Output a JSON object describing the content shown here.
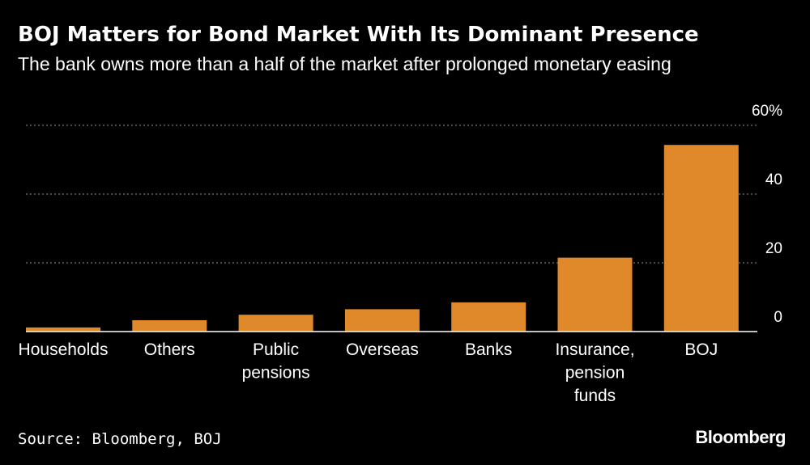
{
  "header": {
    "title": "BOJ Matters for Bond Market With Its Dominant Presence",
    "subtitle": "The bank owns more than a half of the market after prolonged monetary easing"
  },
  "footer": {
    "source": "Source: Bloomberg, BOJ",
    "brand": "Bloomberg"
  },
  "colors": {
    "background": "#000000",
    "bar": "#E0892A",
    "grid": "#777777",
    "text": "#FFFFFF"
  },
  "chart_data": {
    "type": "bar",
    "categories": [
      [
        "Households"
      ],
      [
        "Others"
      ],
      [
        "Public",
        "pensions"
      ],
      [
        "Overseas"
      ],
      [
        "Banks"
      ],
      [
        "Insurance,",
        "pension",
        "funds"
      ],
      [
        "BOJ"
      ]
    ],
    "values": [
      1.2,
      3.3,
      4.9,
      6.5,
      8.5,
      21.5,
      54.3
    ],
    "ylim": [
      0,
      60
    ],
    "yticks": [
      0,
      20,
      40,
      60
    ],
    "ytick_labels": [
      "0",
      "20",
      "40",
      "60%"
    ],
    "grid": true,
    "xlabel": "",
    "ylabel": ""
  }
}
